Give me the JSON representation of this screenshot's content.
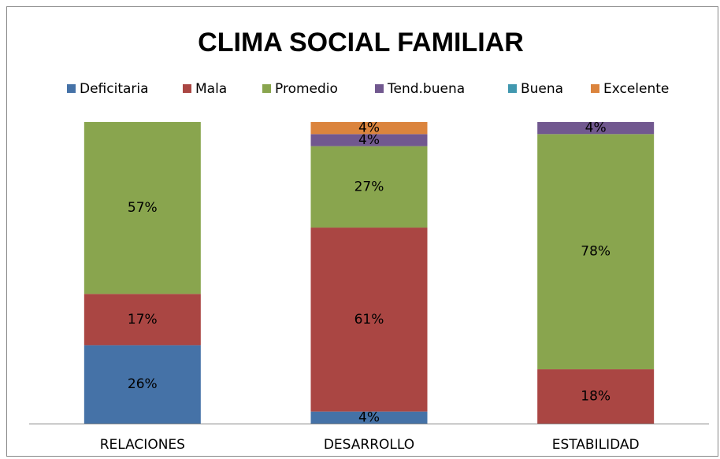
{
  "chart_data": {
    "type": "stacked_bar",
    "title": "CLIMA SOCIAL FAMILIAR",
    "categories": [
      "RELACIONES",
      "DESARROLLO",
      "ESTABILIDAD"
    ],
    "series": [
      {
        "name": "Deficitaria",
        "color": "#4572a7",
        "values": [
          26,
          4,
          0
        ],
        "value_labels": [
          "26%",
          "4%",
          null
        ]
      },
      {
        "name": "Mala",
        "color": "#aa4643",
        "values": [
          17,
          61,
          18
        ],
        "value_labels": [
          "17%",
          "61%",
          "18%"
        ]
      },
      {
        "name": "Promedio",
        "color": "#89a54e",
        "values": [
          57,
          27,
          78
        ],
        "value_labels": [
          "57%",
          "27%",
          "78%"
        ]
      },
      {
        "name": "Tend.buena",
        "color": "#71588f",
        "values": [
          0,
          4,
          4
        ],
        "value_labels": [
          null,
          "4%",
          "4%"
        ]
      },
      {
        "name": "Buena",
        "color": "#4198af",
        "values": [
          0,
          0,
          0
        ],
        "value_labels": [
          null,
          null,
          null
        ]
      },
      {
        "name": "Excelente",
        "color": "#db843d",
        "values": [
          0,
          4,
          0
        ],
        "value_labels": [
          null,
          "4%",
          null
        ]
      }
    ],
    "legend": "top"
  }
}
